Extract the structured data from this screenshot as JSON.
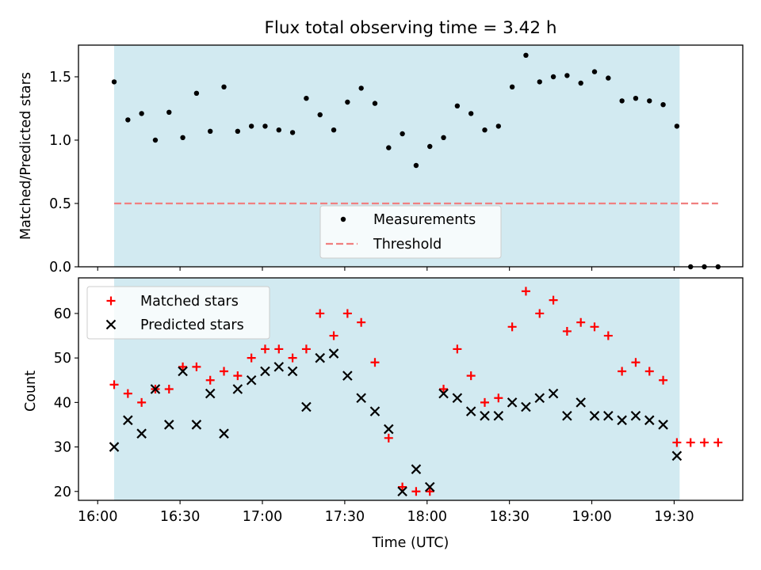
{
  "figure": {
    "title": "Flux total observing time = 3.42 h"
  },
  "chart_data": [
    {
      "type": "scatter",
      "title": "Flux total observing time = 3.42 h",
      "xlabel": "",
      "ylabel": "Matched/Predicted stars",
      "xlim": [
        "15:53",
        "19:55"
      ],
      "ylim": [
        0,
        1.75
      ],
      "yticks": [
        0.0,
        0.5,
        1.0,
        1.5
      ],
      "ytick_labels": [
        "0.0",
        "0.5",
        "1.0",
        "1.5"
      ],
      "shaded_span": {
        "x0": "16:06",
        "x1": "19:32",
        "color": "#add8e6"
      },
      "grid": false,
      "legend": "lower-center",
      "series": [
        {
          "name": "Measurements",
          "kind": "scatter",
          "marker": "dot",
          "color": "#000000",
          "x": [
            "16:06",
            "16:11",
            "16:16",
            "16:21",
            "16:26",
            "16:31",
            "16:36",
            "16:41",
            "16:46",
            "16:51",
            "16:56",
            "17:01",
            "17:06",
            "17:11",
            "17:16",
            "17:21",
            "17:26",
            "17:31",
            "17:36",
            "17:41",
            "17:46",
            "17:51",
            "17:56",
            "18:01",
            "18:06",
            "18:11",
            "18:16",
            "18:21",
            "18:26",
            "18:31",
            "18:36",
            "18:41",
            "18:46",
            "18:51",
            "18:56",
            "19:01",
            "19:06",
            "19:11",
            "19:16",
            "19:21",
            "19:26",
            "19:31",
            "19:36",
            "19:41",
            "19:46"
          ],
          "y": [
            1.46,
            1.16,
            1.21,
            1.0,
            1.22,
            1.02,
            1.37,
            1.07,
            1.42,
            1.07,
            1.11,
            1.11,
            1.08,
            1.06,
            1.33,
            1.2,
            1.08,
            1.3,
            1.41,
            1.29,
            0.94,
            1.05,
            0.8,
            0.95,
            1.02,
            1.27,
            1.21,
            1.08,
            1.11,
            1.42,
            1.67,
            1.46,
            1.5,
            1.51,
            1.45,
            1.54,
            1.49,
            1.31,
            1.33,
            1.31,
            1.28,
            1.11,
            0.0,
            0.0,
            0.0
          ]
        },
        {
          "name": "Threshold",
          "kind": "line",
          "style": "dashed",
          "color": "#f08080",
          "x": [
            "16:06",
            "19:46"
          ],
          "y": [
            0.5,
            0.5
          ]
        }
      ]
    },
    {
      "type": "scatter",
      "title": "",
      "xlabel": "Time (UTC)",
      "ylabel": "Count",
      "xlim": [
        "15:53",
        "19:55"
      ],
      "ylim": [
        18,
        68
      ],
      "yticks": [
        20,
        30,
        40,
        50,
        60
      ],
      "ytick_labels": [
        "20",
        "30",
        "40",
        "50",
        "60"
      ],
      "xticks": [
        "16:00",
        "16:30",
        "17:00",
        "17:30",
        "18:00",
        "18:30",
        "19:00",
        "19:30"
      ],
      "xtick_labels": [
        "16:00",
        "16:30",
        "17:00",
        "17:30",
        "18:00",
        "18:30",
        "19:00",
        "19:30"
      ],
      "shaded_span": {
        "x0": "16:06",
        "x1": "19:32",
        "color": "#add8e6"
      },
      "grid": false,
      "legend": "top-left",
      "series": [
        {
          "name": "Matched stars",
          "kind": "scatter",
          "marker": "plus",
          "color": "#ff0000",
          "x": [
            "16:06",
            "16:11",
            "16:16",
            "16:21",
            "16:26",
            "16:31",
            "16:36",
            "16:41",
            "16:46",
            "16:51",
            "16:56",
            "17:01",
            "17:06",
            "17:11",
            "17:16",
            "17:21",
            "17:26",
            "17:31",
            "17:36",
            "17:41",
            "17:46",
            "17:51",
            "17:56",
            "18:01",
            "18:06",
            "18:11",
            "18:16",
            "18:21",
            "18:26",
            "18:31",
            "18:36",
            "18:41",
            "18:46",
            "18:51",
            "18:56",
            "19:01",
            "19:06",
            "19:11",
            "19:16",
            "19:21",
            "19:26",
            "19:31",
            "19:36",
            "19:41",
            "19:46"
          ],
          "y": [
            44,
            42,
            40,
            43,
            43,
            48,
            48,
            45,
            47,
            46,
            50,
            52,
            52,
            50,
            52,
            60,
            55,
            60,
            58,
            49,
            32,
            21,
            20,
            20,
            43,
            52,
            46,
            40,
            41,
            57,
            65,
            60,
            63,
            56,
            58,
            57,
            55,
            47,
            49,
            47,
            45,
            31,
            31,
            31,
            31
          ]
        },
        {
          "name": "Predicted stars",
          "kind": "scatter",
          "marker": "x",
          "color": "#000000",
          "x": [
            "16:06",
            "16:11",
            "16:16",
            "16:21",
            "16:26",
            "16:31",
            "16:36",
            "16:41",
            "16:46",
            "16:51",
            "16:56",
            "17:01",
            "17:06",
            "17:11",
            "17:16",
            "17:21",
            "17:26",
            "17:31",
            "17:36",
            "17:41",
            "17:46",
            "17:51",
            "17:56",
            "18:01",
            "18:06",
            "18:11",
            "18:16",
            "18:21",
            "18:26",
            "18:31",
            "18:36",
            "18:41",
            "18:46",
            "18:51",
            "18:56",
            "19:01",
            "19:06",
            "19:11",
            "19:16",
            "19:21",
            "19:26",
            "19:31"
          ],
          "y": [
            30,
            36,
            33,
            43,
            35,
            47,
            35,
            42,
            33,
            43,
            45,
            47,
            48,
            47,
            39,
            50,
            51,
            46,
            41,
            38,
            34,
            20,
            25,
            21,
            42,
            41,
            38,
            37,
            37,
            40,
            39,
            41,
            42,
            37,
            40,
            37,
            37,
            36,
            37,
            36,
            35,
            28
          ]
        }
      ]
    }
  ]
}
